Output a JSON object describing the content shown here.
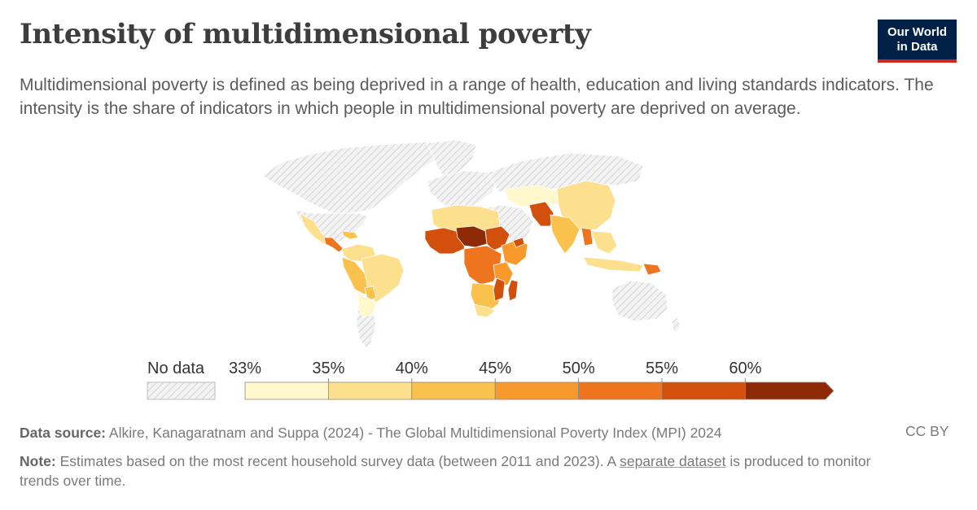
{
  "header": {
    "title": "Intensity of multidimensional poverty",
    "subtitle": "Multidimensional poverty is defined as being deprived in a range of health, education and living standards indicators. The intensity is the share of indicators in which people in multidimensional poverty are deprived on average.",
    "logo_line1": "Our World",
    "logo_line2": "in Data"
  },
  "legend": {
    "no_data_label": "No data",
    "ticks": [
      "33%",
      "35%",
      "40%",
      "45%",
      "50%",
      "55%",
      "60%"
    ],
    "bins": [
      {
        "from": 33,
        "to": 35,
        "color": "#fff8cc"
      },
      {
        "from": 35,
        "to": 40,
        "color": "#fde08e"
      },
      {
        "from": 40,
        "to": 45,
        "color": "#fbc14d"
      },
      {
        "from": 45,
        "to": 50,
        "color": "#f89a2b"
      },
      {
        "from": 50,
        "to": 55,
        "color": "#ee751d"
      },
      {
        "from": 55,
        "to": 60,
        "color": "#d24f0c"
      },
      {
        "from": 60,
        "to": null,
        "color": "#8f2a06"
      }
    ]
  },
  "colors": {
    "no_data_fill": "#f2f2f2",
    "hatch": "#d6d6d6",
    "border": "#ffffff"
  },
  "footer": {
    "source_label": "Data source:",
    "source_text": "Alkire, Kanagaratnam and Suppa (2024) - The Global Multidimensional Poverty Index (MPI) 2024",
    "note_label": "Note:",
    "note_text_before": "Estimates based on the most recent household survey data (between 2011 and 2023). A",
    "note_link": "separate dataset",
    "note_text_after": "is produced to monitor trends over time.",
    "license": "CC BY"
  }
}
